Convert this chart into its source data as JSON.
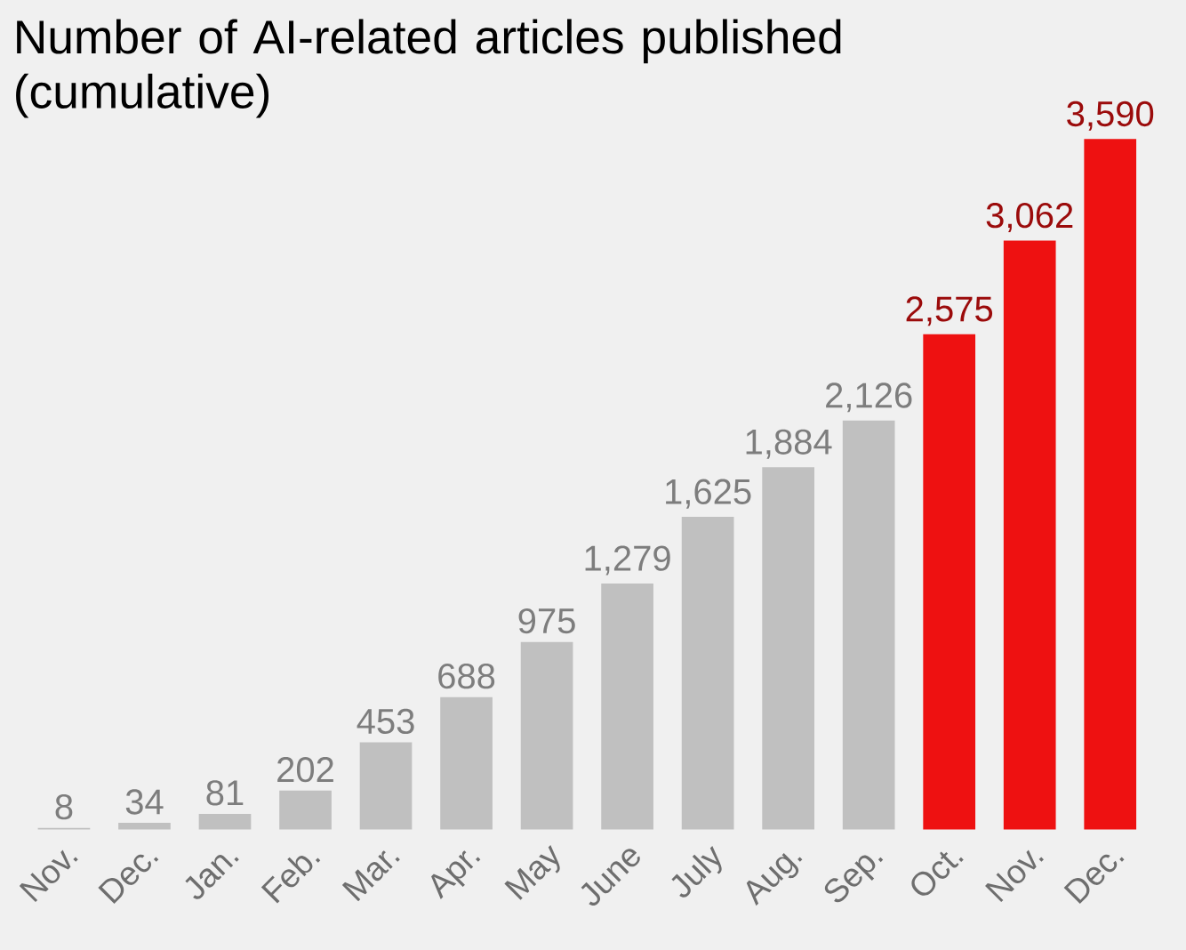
{
  "chart_data": {
    "type": "bar",
    "title": "Number of AI-related articles published (cumulative)",
    "categories": [
      "Nov.",
      "Dec.",
      "Jan.",
      "Feb.",
      "Mar.",
      "Apr.",
      "May",
      "June",
      "July",
      "Aug.",
      "Sep.",
      "Oct.",
      "Nov.",
      "Dec."
    ],
    "values": [
      8,
      34,
      81,
      202,
      453,
      688,
      975,
      1279,
      1625,
      1884,
      2126,
      2575,
      3062,
      3590
    ],
    "colors": [
      "#c0c0c0",
      "#c0c0c0",
      "#c0c0c0",
      "#c0c0c0",
      "#c0c0c0",
      "#c0c0c0",
      "#c0c0c0",
      "#c0c0c0",
      "#c0c0c0",
      "#c0c0c0",
      "#c0c0c0",
      "#ee1111",
      "#ee1111",
      "#ee1111"
    ],
    "value_labels": [
      "8",
      "34",
      "81",
      "202",
      "453",
      "688",
      "975",
      "1,279",
      "1,625",
      "1,884",
      "2,126",
      "2,575",
      "3,062",
      "3,590"
    ],
    "grid": false
  }
}
